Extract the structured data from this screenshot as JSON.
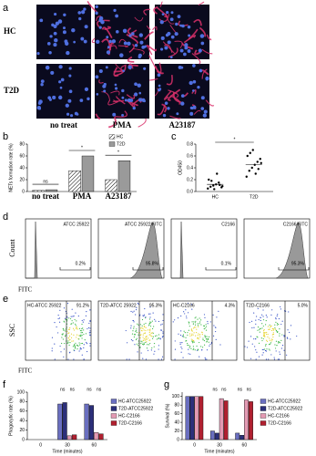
{
  "panels": {
    "a": {
      "label": "a",
      "rows": [
        "HC",
        "T2D"
      ],
      "columns": [
        "no treat",
        "PMA",
        "A23187"
      ]
    },
    "d": {
      "label": "d",
      "y_label": "Count",
      "x_label": "FITC",
      "plots": [
        {
          "name": "ATCC 25922",
          "percent": "0.2%"
        },
        {
          "name": "ATCC 25922/FITC",
          "percent": "95.8%"
        },
        {
          "name": "C2166",
          "percent": "0.1%"
        },
        {
          "name": "C2166/FITC",
          "percent": "95.3%"
        }
      ]
    },
    "e": {
      "label": "e",
      "y_label": "SSC",
      "x_label": "FITC",
      "plots": [
        {
          "name": "HC-ATCC 25922",
          "percent": "91.2%"
        },
        {
          "name": "T2D-ATCC 25922",
          "percent": "95.3%"
        },
        {
          "name": "HC-C2166",
          "percent": "4.3%"
        },
        {
          "name": "T2D-C2166",
          "percent": "5.0%"
        }
      ]
    }
  },
  "chart_data": [
    {
      "type": "bar",
      "label": "b",
      "y_label": "NETs formation rate (%)",
      "categories": [
        "no treat",
        "PMA",
        "A23187"
      ],
      "series": [
        {
          "name": "HC",
          "color": "#ffffff",
          "hatch": true,
          "values": [
            2,
            35,
            20
          ]
        },
        {
          "name": "T2D",
          "color": "#9a9a9a",
          "hatch": false,
          "values": [
            3,
            60,
            52
          ]
        }
      ],
      "annotations": [
        "ns",
        "*",
        "*"
      ],
      "ylim": [
        0,
        80
      ],
      "yticks": [
        0,
        20,
        40,
        60,
        80
      ]
    },
    {
      "type": "strip",
      "label": "c",
      "y_label": "OD450",
      "categories": [
        "HC",
        "T2D"
      ],
      "groups": [
        [
          0.05,
          0.08,
          0.1,
          0.12,
          0.15,
          0.07,
          0.2,
          0.18,
          0.04,
          0.3,
          0.11,
          0.09
        ],
        [
          0.25,
          0.35,
          0.4,
          0.45,
          0.5,
          0.55,
          0.6,
          0.65,
          0.7,
          0.3,
          0.38,
          0.48
        ]
      ],
      "means": [
        0.12,
        0.45
      ],
      "annotations": [
        "*"
      ],
      "ylim": [
        0,
        0.8
      ],
      "yticks": [
        {
          "value": 0,
          "label": "0.0"
        },
        0.2,
        0.4,
        0.6,
        0.8
      ]
    },
    {
      "type": "bar",
      "label": "f",
      "y_label": "Phagocytic rate (%)",
      "x_label": "Time (minutes)",
      "categories": [
        "0",
        "30",
        "60"
      ],
      "series": [
        {
          "name": "HC-ATCC25922",
          "color": "#6a6fc0",
          "hatch": false,
          "values": [
            0,
            75,
            75
          ]
        },
        {
          "name": "T2D-ATCC25922",
          "color": "#2c2f7a",
          "hatch": false,
          "values": [
            0,
            78,
            72
          ]
        },
        {
          "name": "HC-C2166",
          "color": "#e39ab3",
          "hatch": false,
          "values": [
            0,
            8,
            15
          ]
        },
        {
          "name": "T2D-C2166",
          "color": "#b02030",
          "hatch": false,
          "values": [
            0,
            10,
            12
          ]
        }
      ],
      "annotations": [
        "ns",
        "ns",
        "ns",
        "ns"
      ],
      "ylim": [
        0,
        100
      ],
      "yticks": [
        0,
        20,
        40,
        60,
        80,
        100
      ]
    },
    {
      "type": "bar",
      "label": "g",
      "y_label": "Survival (%)",
      "x_label": "Time (minutes)",
      "categories": [
        "0",
        "30",
        "60"
      ],
      "series": [
        {
          "name": "HC-ATCC25922",
          "color": "#6a6fc0",
          "hatch": false,
          "values": [
            100,
            20,
            15
          ]
        },
        {
          "name": "T2D-ATCC25922",
          "color": "#2c2f7a",
          "hatch": false,
          "values": [
            100,
            15,
            10
          ]
        },
        {
          "name": "HC-C2166",
          "color": "#e39ab3",
          "hatch": false,
          "values": [
            100,
            95,
            92
          ]
        },
        {
          "name": "T2D-C2166",
          "color": "#b02030",
          "hatch": false,
          "values": [
            100,
            90,
            88
          ]
        }
      ],
      "annotations": [
        "ns",
        "ns",
        "ns",
        "ns"
      ],
      "ylim": [
        0,
        110
      ],
      "yticks": [
        0,
        20,
        40,
        60,
        80,
        100
      ]
    }
  ]
}
